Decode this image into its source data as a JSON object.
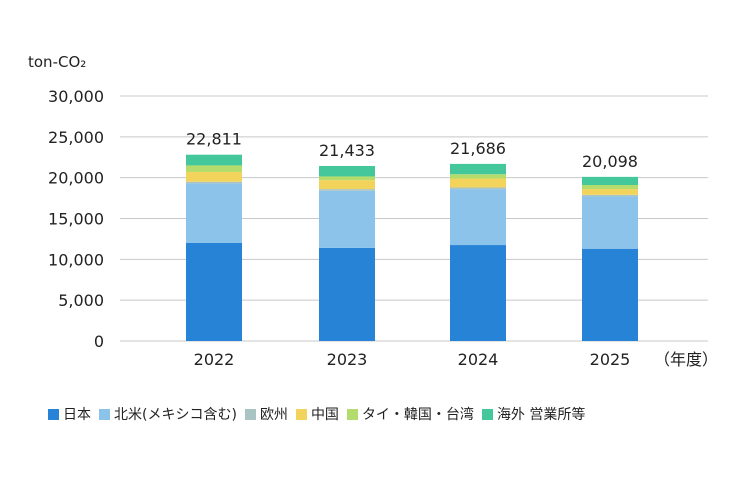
{
  "chart_data": {
    "type": "bar",
    "stacked": true,
    "unit_label": "ton-CO₂",
    "x_unit_label": "（年度）",
    "categories": [
      "2022",
      "2023",
      "2024",
      "2025"
    ],
    "totals": [
      "22,811",
      "21,433",
      "21,686",
      "20,098"
    ],
    "ylim": [
      0,
      30000
    ],
    "yticks": [
      0,
      5000,
      10000,
      15000,
      20000,
      25000,
      30000
    ],
    "ytick_labels": [
      "0",
      "5,000",
      "10,000",
      "15,000",
      "20,000",
      "25,000",
      "30,000"
    ],
    "grid": true,
    "legend_position": "bottom",
    "series": [
      {
        "name": "日本",
        "color": "#2783d6",
        "values": [
          12000,
          11400,
          11750,
          11300
        ]
      },
      {
        "name": "北米(メキシコ含む)",
        "color": "#8cc3ea",
        "values": [
          7300,
          7000,
          6850,
          6400
        ]
      },
      {
        "name": "欧州",
        "color": "#aac4c4",
        "values": [
          200,
          200,
          200,
          200
        ]
      },
      {
        "name": "中国",
        "color": "#f2d45c",
        "values": [
          1200,
          1100,
          1100,
          700
        ]
      },
      {
        "name": "タイ・韓国・台湾",
        "color": "#b3dc6c",
        "values": [
          800,
          450,
          520,
          500
        ]
      },
      {
        "name": "海外 営業所等",
        "color": "#44c79a",
        "values": [
          1311,
          1283,
          1266,
          998
        ]
      }
    ]
  }
}
